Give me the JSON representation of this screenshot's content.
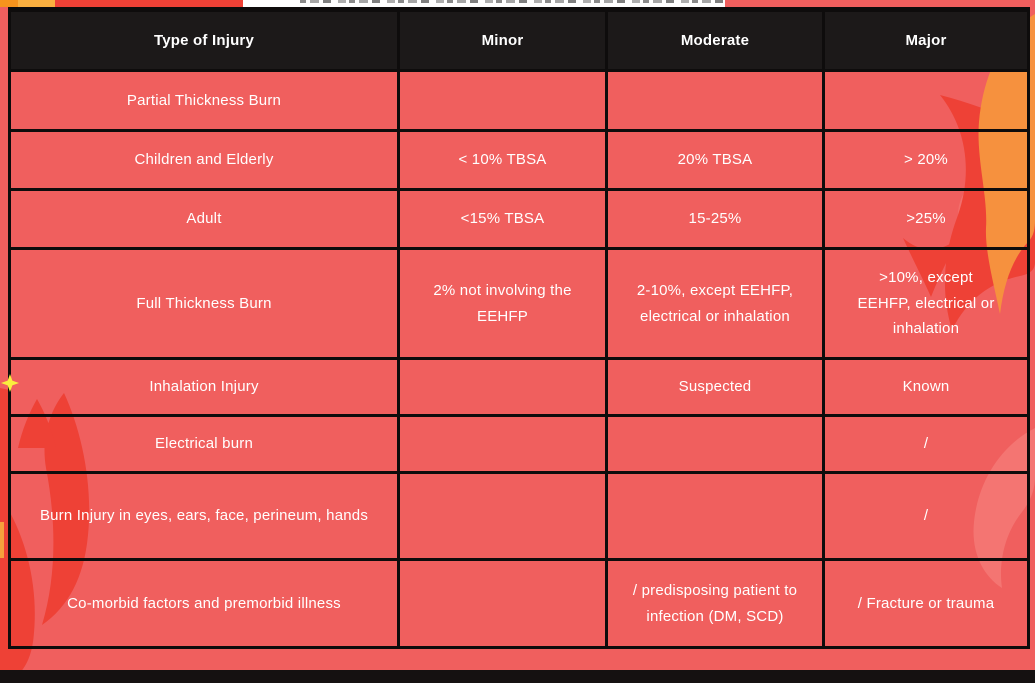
{
  "page": {
    "background_color": "#F05F5E",
    "grid_border_color": "#0E0C0C",
    "header_bg_color": "#1C1919",
    "text_color": "#FFFFFF",
    "flame_orange": "#F6913E",
    "flame_red": "#EE4136",
    "flame_pink": "#F8918B",
    "sparkle_yellow": "#FAEE3E",
    "top_strip_amber": "#FBB040",
    "decorations": [
      "flame-orange",
      "flame-red",
      "flame-pink",
      "sparkle",
      "clipped-title-strip"
    ]
  },
  "table": {
    "headers": [
      "Type of Injury",
      "Minor",
      "Moderate",
      "Major"
    ],
    "rows": [
      [
        "Partial Thickness Burn",
        "",
        "",
        ""
      ],
      [
        "Children and Elderly",
        "< 10% TBSA",
        "20% TBSA",
        "> 20%"
      ],
      [
        "Adult",
        "<15% TBSA",
        "15-25%",
        ">25%"
      ],
      [
        "Full Thickness Burn",
        "2% not involving the EEHFP",
        "2-10%, except EEHFP, electrical or inhalation",
        ">10%, except EEHFP, electrical or inhalation"
      ],
      [
        "Inhalation Injury",
        "",
        "Suspected",
        "Known"
      ],
      [
        "Electrical burn",
        "",
        "",
        "/"
      ],
      [
        "Burn Injury in eyes, ears, face, perineum, hands",
        "",
        "",
        "/"
      ],
      [
        "Co-morbid factors and premorbid illness",
        "",
        "/ predisposing patient to infection (DM, SCD)",
        "/ Fracture or trauma"
      ]
    ]
  }
}
